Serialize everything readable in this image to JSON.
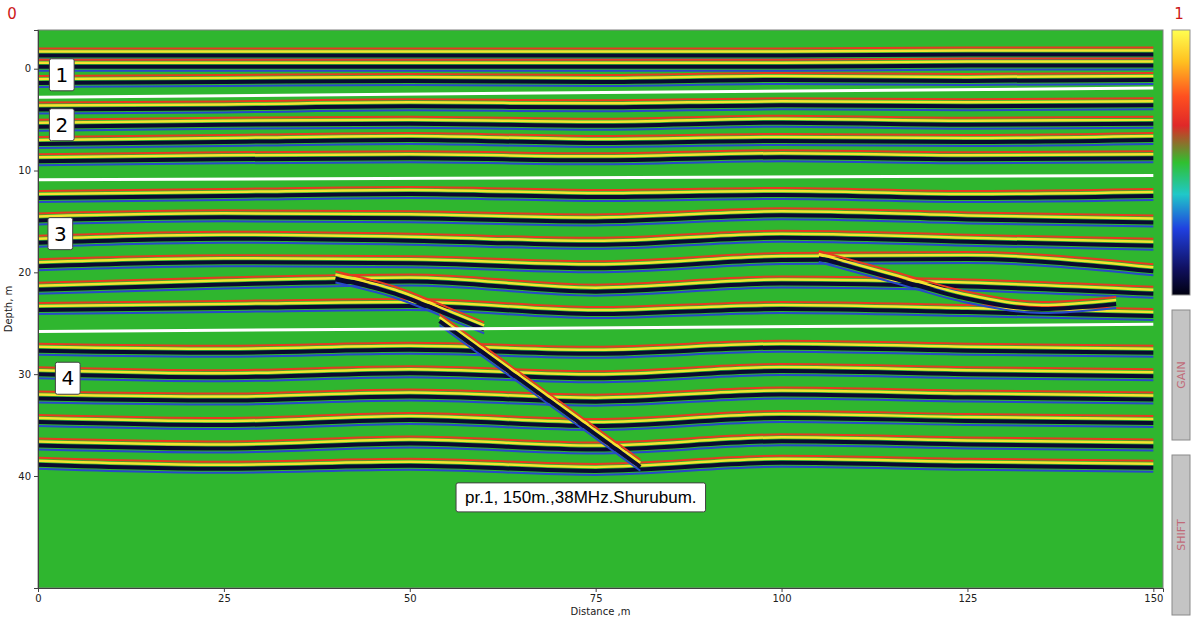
{
  "chart_data": {
    "type": "radargram",
    "x_label": "Distance ,m",
    "y_label": "Depth, m",
    "xlim": [
      0,
      151.3
    ],
    "ylim": [
      -3.8,
      51
    ],
    "xticks": [
      0,
      25,
      50,
      75,
      100,
      125,
      150
    ],
    "yticks": [
      0,
      10,
      20,
      30,
      40
    ],
    "colorbar": {
      "range": [
        0,
        1
      ]
    },
    "controls": [
      "GAIN",
      "SHIFT"
    ],
    "series": [
      {
        "type": "reflector",
        "x": [
          0,
          25,
          50,
          75,
          100,
          125,
          150
        ],
        "values": [
          -1.4,
          -1.4,
          -1.4,
          -1.4,
          -1.4,
          -1.5,
          -1.5
        ]
      },
      {
        "type": "reflector",
        "x": [
          0,
          25,
          50,
          75,
          100,
          125,
          150
        ],
        "values": [
          -0.3,
          -0.3,
          -0.3,
          -0.3,
          -0.3,
          -0.4,
          -0.4
        ]
      },
      {
        "type": "reflector",
        "x": [
          0,
          25,
          50,
          75,
          100,
          125,
          150
        ],
        "values": [
          1.3,
          1.2,
          1.1,
          1.2,
          1.0,
          1.1,
          1.0
        ]
      },
      {
        "type": "reflector",
        "x": [
          0,
          25,
          50,
          75,
          100,
          125,
          150
        ],
        "values": [
          3.9,
          3.8,
          3.6,
          3.7,
          3.5,
          3.6,
          3.5
        ]
      },
      {
        "type": "reflector",
        "x": [
          0,
          25,
          50,
          75,
          100,
          125,
          150
        ],
        "values": [
          5.6,
          5.4,
          5.3,
          5.5,
          5.2,
          5.4,
          5.3
        ]
      },
      {
        "type": "reflector",
        "x": [
          0,
          25,
          50,
          75,
          100,
          125,
          150
        ],
        "values": [
          7.3,
          7.1,
          6.9,
          7.2,
          7.0,
          7.1,
          6.9
        ]
      },
      {
        "type": "reflector",
        "x": [
          0,
          25,
          50,
          75,
          100,
          125,
          150
        ],
        "values": [
          9.0,
          8.8,
          8.7,
          8.9,
          8.6,
          8.8,
          8.7
        ]
      },
      {
        "type": "reflector",
        "x": [
          0,
          25,
          50,
          75,
          100,
          125,
          150
        ],
        "values": [
          12.6,
          12.4,
          12.2,
          12.5,
          12.3,
          12.6,
          12.4
        ]
      },
      {
        "type": "reflector",
        "x": [
          0,
          25,
          50,
          75,
          100,
          125,
          150
        ],
        "values": [
          14.8,
          14.5,
          14.6,
          14.9,
          14.3,
          14.7,
          15.0
        ]
      },
      {
        "type": "reflector",
        "x": [
          0,
          25,
          50,
          75,
          100,
          125,
          150
        ],
        "values": [
          17.0,
          16.6,
          16.8,
          17.2,
          16.5,
          16.9,
          17.3
        ]
      },
      {
        "type": "reflector",
        "x": [
          0,
          25,
          50,
          75,
          100,
          125,
          150
        ],
        "values": [
          19.3,
          18.9,
          19.0,
          19.5,
          18.7,
          18.6,
          19.8
        ]
      },
      {
        "type": "reflector",
        "x": [
          0,
          25,
          50,
          75,
          100,
          125,
          150
        ],
        "values": [
          21.6,
          21.1,
          20.8,
          21.8,
          21.0,
          21.3,
          22.0
        ]
      },
      {
        "type": "reflector",
        "x": [
          0,
          25,
          50,
          75,
          100,
          125,
          150
        ],
        "values": [
          23.6,
          23.4,
          23.2,
          24.0,
          23.5,
          23.8,
          24.2
        ]
      },
      {
        "type": "reflector",
        "x": [
          105,
          115,
          125,
          135,
          145
        ],
        "values": [
          18.5,
          20.5,
          22.5,
          23.5,
          23.0
        ]
      },
      {
        "type": "reflector",
        "x": [
          40,
          48,
          55,
          60
        ],
        "values": [
          20.5,
          22.0,
          24.0,
          25.5
        ]
      },
      {
        "type": "reflector",
        "x": [
          0,
          25,
          50,
          75,
          100,
          125,
          150
        ],
        "values": [
          27.6,
          27.8,
          27.5,
          27.9,
          27.3,
          27.6,
          27.8
        ]
      },
      {
        "type": "reflector",
        "x": [
          0,
          25,
          50,
          75,
          100,
          125,
          150
        ],
        "values": [
          29.9,
          30.2,
          29.8,
          30.3,
          29.6,
          29.9,
          30.1
        ]
      },
      {
        "type": "reflector",
        "x": [
          0,
          25,
          50,
          75,
          100,
          125,
          150
        ],
        "values": [
          32.3,
          32.5,
          32.1,
          32.6,
          31.9,
          32.2,
          32.4
        ]
      },
      {
        "type": "reflector",
        "x": [
          0,
          25,
          50,
          75,
          100,
          125,
          150
        ],
        "values": [
          34.6,
          34.9,
          34.4,
          35.0,
          34.2,
          34.5,
          34.7
        ]
      },
      {
        "type": "reflector",
        "x": [
          0,
          25,
          50,
          75,
          100,
          125,
          150
        ],
        "values": [
          36.9,
          37.2,
          36.7,
          37.3,
          36.5,
          36.8,
          37.0
        ]
      },
      {
        "type": "reflector",
        "x": [
          0,
          25,
          50,
          75,
          100,
          125,
          150
        ],
        "values": [
          38.8,
          39.2,
          38.9,
          39.4,
          38.6,
          38.9,
          39.1
        ]
      },
      {
        "type": "reflector",
        "x": [
          54,
          81
        ],
        "values": [
          24.7,
          39.0
        ]
      },
      {
        "type": "line",
        "color": "#ffffff",
        "x": [
          0,
          150
        ],
        "values": [
          2.8,
          1.9
        ]
      },
      {
        "type": "line",
        "color": "#ffffff",
        "x": [
          0,
          150
        ],
        "values": [
          10.9,
          10.5
        ]
      },
      {
        "type": "line",
        "color": "#ffffff",
        "x": [
          0,
          150
        ],
        "values": [
          25.8,
          25.1
        ]
      }
    ],
    "annotations": [
      {
        "text": "1",
        "x": 3.2,
        "y": 0.6
      },
      {
        "text": "2",
        "x": 3.2,
        "y": 5.5
      },
      {
        "text": "3",
        "x": 3.0,
        "y": 16.2
      },
      {
        "text": "4",
        "x": 4.0,
        "y": 30.4
      },
      {
        "text": "pr.1, 150m.,38MHz.Shurubum.",
        "x": 73.0,
        "y": 42.1
      }
    ]
  }
}
